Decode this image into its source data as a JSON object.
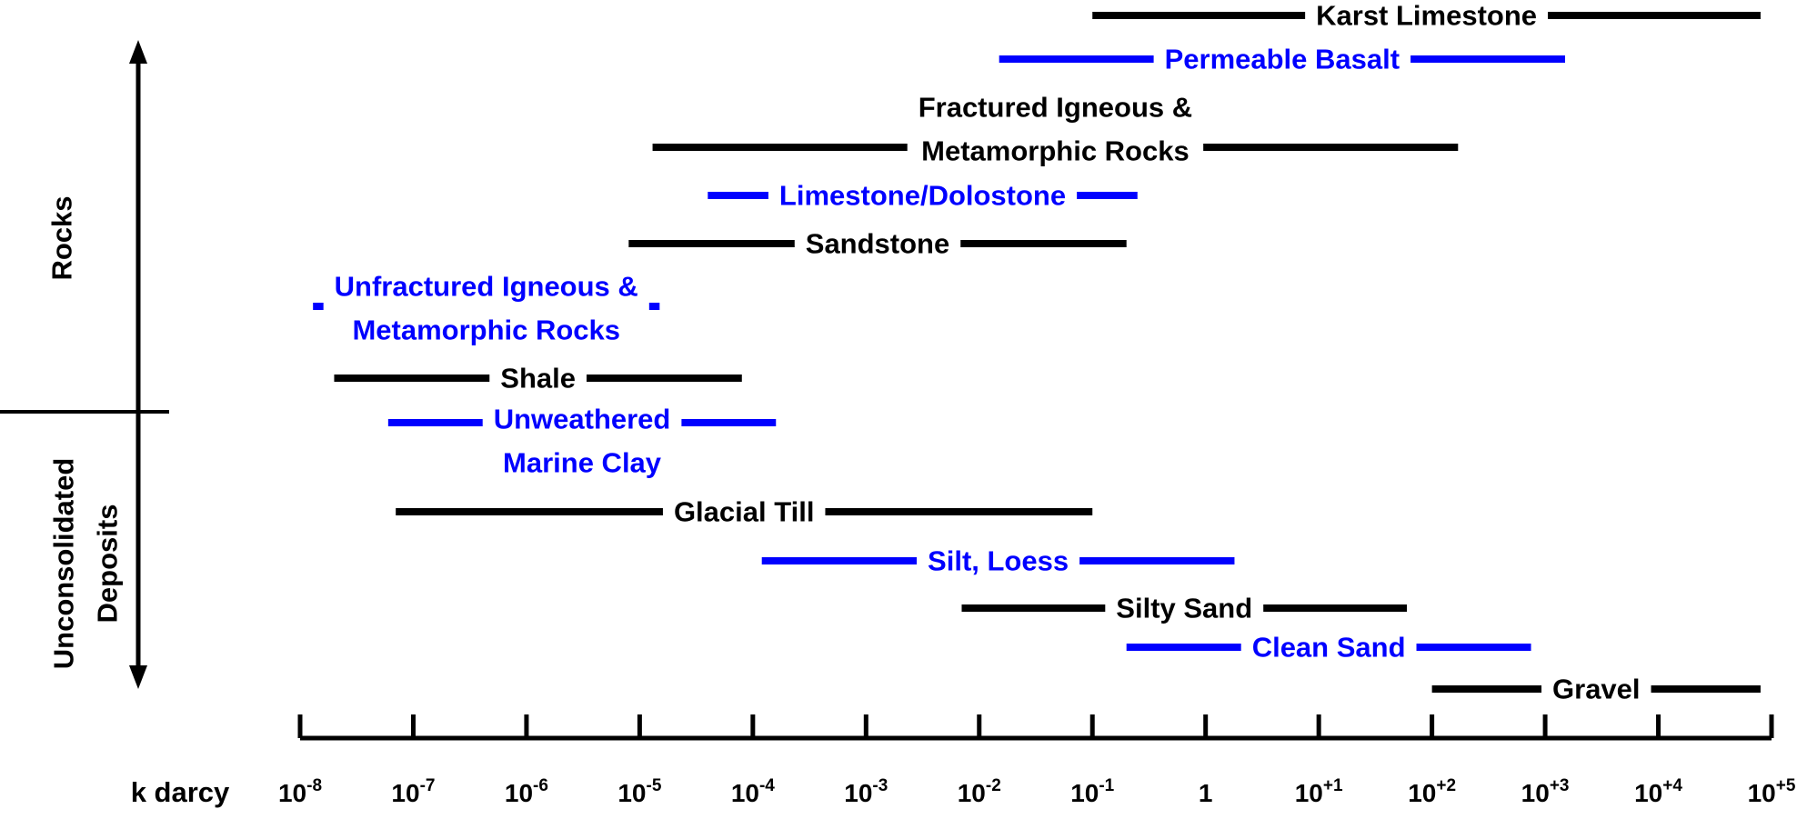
{
  "chart_data": {
    "type": "range",
    "xlabel": "k darcy",
    "x_scale": "log10",
    "xlim": [
      1e-08,
      100000.0
    ],
    "tick_labels": [
      {
        "base": "10",
        "exp": "-8"
      },
      {
        "base": "10",
        "exp": "-7"
      },
      {
        "base": "10",
        "exp": "-6"
      },
      {
        "base": "10",
        "exp": "-5"
      },
      {
        "base": "10",
        "exp": "-4"
      },
      {
        "base": "10",
        "exp": "-3"
      },
      {
        "base": "10",
        "exp": "-2"
      },
      {
        "base": "10",
        "exp": "-1"
      },
      {
        "base": "1",
        "exp": ""
      },
      {
        "base": "10",
        "exp": "+1"
      },
      {
        "base": "10",
        "exp": "+2"
      },
      {
        "base": "10",
        "exp": "+3"
      },
      {
        "base": "10",
        "exp": "+4"
      },
      {
        "base": "10",
        "exp": "+5"
      }
    ],
    "groups": [
      {
        "label": "Rocks"
      },
      {
        "label_lines": [
          "Unconsolidated",
          "Deposits"
        ]
      }
    ],
    "series": [
      {
        "label_lines": [
          "Karst Limestone"
        ],
        "color": "#000000",
        "min": 0.1,
        "max": 80000
      },
      {
        "label_lines": [
          "Permeable Basalt"
        ],
        "color": "#0000ff",
        "min": 0.015,
        "max": 1500
      },
      {
        "label_lines": [
          "Fractured Igneous &",
          "Metamorphic Rocks"
        ],
        "color": "#000000",
        "min": 1.3e-05,
        "max": 170
      },
      {
        "label_lines": [
          "Limestone/Dolostone"
        ],
        "color": "#0000ff",
        "min": 4e-05,
        "max": 0.25
      },
      {
        "label_lines": [
          "Sandstone"
        ],
        "color": "#000000",
        "min": 8e-06,
        "max": 0.2
      },
      {
        "label_lines": [
          "Unfractured Igneous &",
          "Metamorphic Rocks"
        ],
        "color": "#0000ff",
        "min": 1.3e-08,
        "max": 1.5e-05
      },
      {
        "label_lines": [
          "Shale"
        ],
        "color": "#000000",
        "min": 2e-08,
        "max": 8e-05
      },
      {
        "label_lines": [
          "Unweathered",
          "Marine Clay"
        ],
        "color": "#0000ff",
        "min": 6e-08,
        "max": 0.00016
      },
      {
        "label_lines": [
          "Glacial Till"
        ],
        "color": "#000000",
        "min": 7e-08,
        "max": 0.1
      },
      {
        "label_lines": [
          "Silt, Loess"
        ],
        "color": "#0000ff",
        "min": 0.00012,
        "max": 1.8
      },
      {
        "label_lines": [
          "Silty Sand"
        ],
        "color": "#000000",
        "min": 0.007,
        "max": 60
      },
      {
        "label_lines": [
          "Clean Sand"
        ],
        "color": "#0000ff",
        "min": 0.2,
        "max": 750
      },
      {
        "label_lines": [
          "Gravel"
        ],
        "color": "#000000",
        "min": 100,
        "max": 80000
      }
    ]
  }
}
